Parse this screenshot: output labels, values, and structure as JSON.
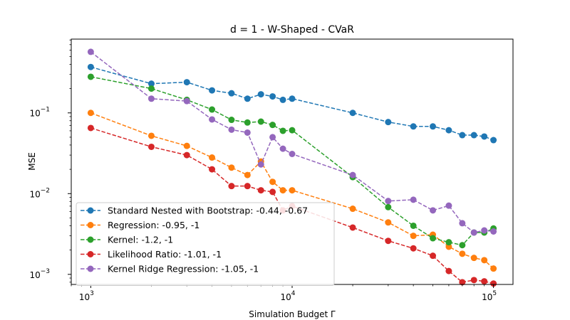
{
  "chart_data": {
    "type": "line",
    "title": "d = 1 - W-Shaped - CVaR",
    "xlabel": "Simulation Budget Γ",
    "ylabel": "MSE",
    "xscale": "log",
    "yscale": "log",
    "xlim": [
      800,
      125000
    ],
    "ylim": [
      0.00075,
      0.82
    ],
    "x_ticks": [
      {
        "value": 1000,
        "base": "10",
        "exp": "3"
      },
      {
        "value": 10000,
        "base": "10",
        "exp": "4"
      },
      {
        "value": 100000,
        "base": "10",
        "exp": "5"
      }
    ],
    "y_ticks": [
      {
        "value": 0.001,
        "base": "10",
        "exp": "−3"
      },
      {
        "value": 0.01,
        "base": "10",
        "exp": "−2"
      },
      {
        "value": 0.1,
        "base": "10",
        "exp": "−1"
      }
    ],
    "grid": false,
    "legend_position": "lower-left",
    "x": [
      1000,
      2000,
      3000,
      4000,
      5000,
      6000,
      7000,
      8000,
      9000,
      10000,
      20000,
      30000,
      40000,
      50000,
      60000,
      70000,
      80000,
      90000,
      100000
    ],
    "series": [
      {
        "name": "Standard Nested with Bootstrap: -0.44, -0.67",
        "color": "#1f77b4",
        "values": [
          0.37,
          0.23,
          0.24,
          0.19,
          0.175,
          0.15,
          0.17,
          0.16,
          0.145,
          0.15,
          0.1,
          0.077,
          0.068,
          0.068,
          0.061,
          0.053,
          0.053,
          0.051,
          0.046
        ]
      },
      {
        "name": "Regression: -0.95, -1",
        "color": "#ff7f0e",
        "values": [
          0.1,
          0.052,
          0.039,
          0.028,
          0.021,
          0.017,
          0.025,
          0.014,
          0.011,
          0.011,
          0.0065,
          0.0044,
          0.003,
          0.0031,
          0.0022,
          0.0018,
          0.0016,
          0.0015,
          0.00118
        ]
      },
      {
        "name": "Kernel: -1.2, -1",
        "color": "#2ca02c",
        "values": [
          0.28,
          0.2,
          0.145,
          0.11,
          0.082,
          0.076,
          0.078,
          0.071,
          0.06,
          0.061,
          0.016,
          0.0068,
          0.004,
          0.0028,
          0.0025,
          0.0023,
          0.0033,
          0.0033,
          0.0037
        ]
      },
      {
        "name": "Likelihood Ratio: -1.01, -1",
        "color": "#d62728",
        "values": [
          0.065,
          0.038,
          0.03,
          0.02,
          0.0124,
          0.0124,
          0.011,
          0.0105,
          0.0062,
          0.007,
          0.0038,
          0.0026,
          0.0021,
          0.0017,
          0.0011,
          0.0008,
          0.00085,
          0.00082,
          0.00077
        ]
      },
      {
        "name": "Kernel Ridge Regression: -1.05, -1",
        "color": "#9467bd",
        "values": [
          0.57,
          0.15,
          0.14,
          0.083,
          0.062,
          0.057,
          0.023,
          0.05,
          0.036,
          0.031,
          0.017,
          0.0081,
          0.0084,
          0.0062,
          0.0071,
          0.0043,
          0.0033,
          0.0035,
          0.0034
        ]
      }
    ]
  }
}
